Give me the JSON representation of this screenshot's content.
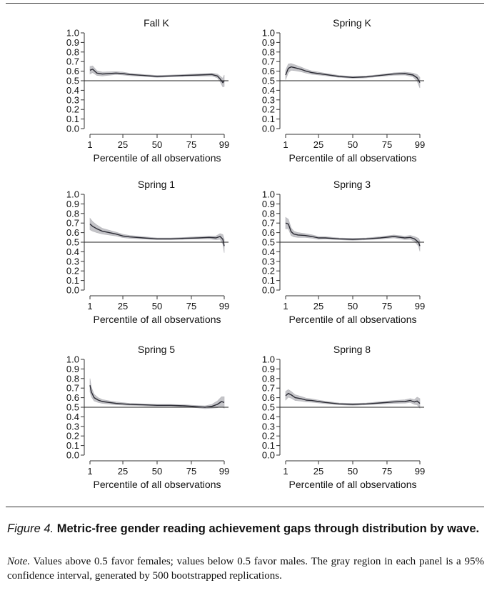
{
  "caption": {
    "label": "Figure 4.",
    "title": "Metric-free gender reading achievement gaps through distribution by wave."
  },
  "note": {
    "label": "Note.",
    "text": "Values above 0.5 favor females; values below 0.5 favor males. The gray region in each panel is a 95% confidence interval, generated by 500 bootstrapped replications."
  },
  "colors": {
    "line": "#2a2a33",
    "band": "#c4c4c8",
    "axis": "#333333",
    "reference": "#222222"
  },
  "chart_data": [
    {
      "type": "line",
      "title": "Fall K",
      "xlabel": "Percentile of all observations",
      "xticks": [
        1,
        25,
        50,
        75,
        99
      ],
      "xlim": [
        1,
        99
      ],
      "yticks": [
        "1.0",
        "0.9",
        "0.8",
        "0.7",
        "0.6",
        "0.5",
        "0.4",
        "0.3",
        "0.2",
        "0.1",
        "0.0"
      ],
      "ylim": [
        0,
        1
      ],
      "reference_line": 0.5,
      "grid": false,
      "x": [
        1,
        3,
        6,
        10,
        15,
        20,
        25,
        30,
        40,
        50,
        60,
        70,
        80,
        90,
        94,
        96,
        98,
        99
      ],
      "y": [
        0.61,
        0.62,
        0.58,
        0.57,
        0.575,
        0.58,
        0.575,
        0.565,
        0.555,
        0.545,
        0.55,
        0.555,
        0.56,
        0.565,
        0.55,
        0.52,
        0.48,
        0.5
      ],
      "ci_width": [
        0.08,
        0.07,
        0.05,
        0.04,
        0.035,
        0.03,
        0.03,
        0.025,
        0.02,
        0.02,
        0.02,
        0.02,
        0.025,
        0.03,
        0.04,
        0.06,
        0.09,
        0.12
      ]
    },
    {
      "type": "line",
      "title": "Spring K",
      "xlabel": "Percentile of all observations",
      "xticks": [
        1,
        25,
        50,
        75,
        99
      ],
      "xlim": [
        1,
        99
      ],
      "yticks": [
        "1.0",
        "0.9",
        "0.8",
        "0.7",
        "0.6",
        "0.5",
        "0.4",
        "0.3",
        "0.2",
        "0.1",
        "0.0"
      ],
      "ylim": [
        0,
        1
      ],
      "reference_line": 0.5,
      "grid": false,
      "x": [
        1,
        3,
        5,
        8,
        12,
        16,
        20,
        25,
        30,
        40,
        50,
        60,
        70,
        80,
        88,
        94,
        97,
        99
      ],
      "y": [
        0.56,
        0.63,
        0.645,
        0.635,
        0.62,
        0.6,
        0.585,
        0.575,
        0.565,
        0.545,
        0.535,
        0.54,
        0.555,
        0.57,
        0.575,
        0.56,
        0.53,
        0.48
      ],
      "ci_width": [
        0.1,
        0.09,
        0.07,
        0.06,
        0.05,
        0.04,
        0.035,
        0.03,
        0.025,
        0.02,
        0.02,
        0.02,
        0.02,
        0.025,
        0.03,
        0.04,
        0.07,
        0.11
      ]
    },
    {
      "type": "line",
      "title": "Spring 1",
      "xlabel": "Percentile of all observations",
      "xticks": [
        1,
        25,
        50,
        75,
        99
      ],
      "xlim": [
        1,
        99
      ],
      "yticks": [
        "1.0",
        "0.9",
        "0.8",
        "0.7",
        "0.6",
        "0.5",
        "0.4",
        "0.3",
        "0.2",
        "0.1",
        "0.0"
      ],
      "ylim": [
        0,
        1
      ],
      "reference_line": 0.5,
      "grid": false,
      "x": [
        1,
        3,
        6,
        10,
        15,
        20,
        25,
        30,
        40,
        50,
        60,
        70,
        80,
        88,
        93,
        96,
        98,
        99
      ],
      "y": [
        0.69,
        0.665,
        0.64,
        0.615,
        0.6,
        0.585,
        0.565,
        0.555,
        0.545,
        0.535,
        0.535,
        0.54,
        0.545,
        0.55,
        0.545,
        0.56,
        0.53,
        0.46
      ],
      "ci_width": [
        0.12,
        0.1,
        0.08,
        0.06,
        0.05,
        0.04,
        0.035,
        0.03,
        0.025,
        0.02,
        0.02,
        0.02,
        0.025,
        0.03,
        0.04,
        0.06,
        0.1,
        0.14
      ]
    },
    {
      "type": "line",
      "title": "Spring 3",
      "xlabel": "Percentile of all observations",
      "xticks": [
        1,
        25,
        50,
        75,
        99
      ],
      "xlim": [
        1,
        99
      ],
      "yticks": [
        "1.0",
        "0.9",
        "0.8",
        "0.7",
        "0.6",
        "0.5",
        "0.4",
        "0.3",
        "0.2",
        "0.1",
        "0.0"
      ],
      "ylim": [
        0,
        1
      ],
      "reference_line": 0.5,
      "grid": false,
      "x": [
        1,
        3,
        5,
        7,
        10,
        15,
        20,
        25,
        30,
        40,
        50,
        60,
        70,
        80,
        88,
        92,
        95,
        98,
        99
      ],
      "y": [
        0.7,
        0.69,
        0.61,
        0.585,
        0.575,
        0.57,
        0.56,
        0.545,
        0.545,
        0.535,
        0.53,
        0.535,
        0.545,
        0.56,
        0.545,
        0.55,
        0.535,
        0.5,
        0.46
      ],
      "ci_width": [
        0.12,
        0.1,
        0.08,
        0.06,
        0.05,
        0.04,
        0.035,
        0.03,
        0.025,
        0.02,
        0.02,
        0.02,
        0.025,
        0.03,
        0.035,
        0.04,
        0.05,
        0.08,
        0.11
      ]
    },
    {
      "type": "line",
      "title": "Spring 5",
      "xlabel": "Percentile of all observations",
      "xticks": [
        1,
        25,
        50,
        75,
        99
      ],
      "xlim": [
        1,
        99
      ],
      "yticks": [
        "1.0",
        "0.9",
        "0.8",
        "0.7",
        "0.6",
        "0.5",
        "0.4",
        "0.3",
        "0.2",
        "0.1",
        "0.0"
      ],
      "ylim": [
        0,
        1
      ],
      "reference_line": 0.5,
      "grid": false,
      "x": [
        1,
        2,
        4,
        7,
        10,
        15,
        20,
        25,
        30,
        40,
        50,
        60,
        70,
        80,
        85,
        90,
        94,
        97,
        99
      ],
      "y": [
        0.73,
        0.66,
        0.6,
        0.575,
        0.56,
        0.55,
        0.54,
        0.535,
        0.53,
        0.525,
        0.52,
        0.52,
        0.515,
        0.505,
        0.5,
        0.51,
        0.53,
        0.56,
        0.55
      ],
      "ci_width": [
        0.14,
        0.1,
        0.07,
        0.05,
        0.04,
        0.035,
        0.03,
        0.025,
        0.02,
        0.02,
        0.02,
        0.02,
        0.02,
        0.025,
        0.03,
        0.04,
        0.07,
        0.1,
        0.12
      ]
    },
    {
      "type": "line",
      "title": "Spring 8",
      "xlabel": "Percentile of all observations",
      "xticks": [
        1,
        25,
        50,
        75,
        99
      ],
      "xlim": [
        1,
        99
      ],
      "yticks": [
        "1.0",
        "0.9",
        "0.8",
        "0.7",
        "0.6",
        "0.5",
        "0.4",
        "0.3",
        "0.2",
        "0.1",
        "0.0"
      ],
      "ylim": [
        0,
        1
      ],
      "reference_line": 0.5,
      "grid": false,
      "x": [
        1,
        3,
        5,
        8,
        12,
        16,
        20,
        25,
        30,
        40,
        50,
        60,
        70,
        80,
        88,
        92,
        95,
        97,
        99
      ],
      "y": [
        0.62,
        0.645,
        0.63,
        0.6,
        0.59,
        0.575,
        0.57,
        0.56,
        0.55,
        0.535,
        0.53,
        0.535,
        0.545,
        0.555,
        0.56,
        0.57,
        0.555,
        0.565,
        0.54
      ],
      "ci_width": [
        0.09,
        0.08,
        0.07,
        0.06,
        0.05,
        0.04,
        0.035,
        0.03,
        0.025,
        0.02,
        0.02,
        0.02,
        0.025,
        0.03,
        0.035,
        0.04,
        0.05,
        0.08,
        0.1
      ]
    }
  ]
}
